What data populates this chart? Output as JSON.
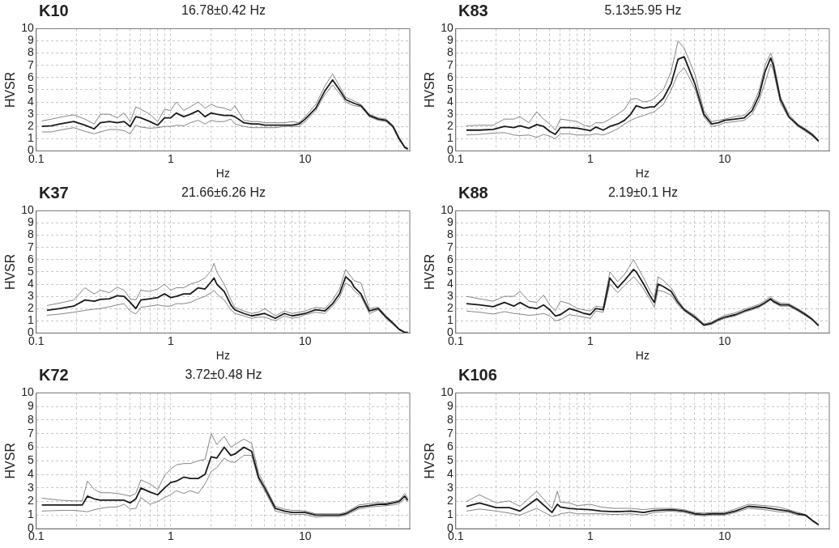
{
  "chart_data": [
    {
      "type": "line",
      "log": "x",
      "title": "K10",
      "subtitle": "16.78±0.42 Hz",
      "xlabel": "Hz",
      "ylabel": "HVSR",
      "xlim": [
        0.1,
        60
      ],
      "ylim": [
        0,
        10
      ],
      "grid": true,
      "xticks": [
        0.1,
        {
          "value": 0.2,
          "label": null
        },
        {
          "value": 0.3,
          "label": null
        },
        {
          "value": 0.4,
          "label": null
        },
        {
          "value": 0.5,
          "label": null
        },
        {
          "value": 0.6,
          "label": null
        },
        {
          "value": 0.7,
          "label": null
        },
        {
          "value": 0.8,
          "label": null
        },
        {
          "value": 0.9,
          "label": null
        },
        1,
        {
          "value": 2,
          "label": null
        },
        {
          "value": 3,
          "label": null
        },
        {
          "value": 4,
          "label": null
        },
        {
          "value": 5,
          "label": null
        },
        {
          "value": 6,
          "label": null
        },
        {
          "value": 7,
          "label": null
        },
        {
          "value": 8,
          "label": null
        },
        {
          "value": 9,
          "label": null
        },
        10,
        {
          "value": 20,
          "label": null
        },
        {
          "value": 30,
          "label": null
        },
        {
          "value": 40,
          "label": null
        },
        {
          "value": 50,
          "label": null
        }
      ],
      "yticks": [
        0,
        1,
        2,
        3,
        4,
        5,
        6,
        7,
        8,
        9,
        10
      ],
      "x": [
        0.11,
        0.13,
        0.15,
        0.19,
        0.23,
        0.27,
        0.3,
        0.35,
        0.4,
        0.45,
        0.5,
        0.55,
        0.6,
        0.7,
        0.8,
        0.9,
        1,
        1.1,
        1.25,
        1.4,
        1.6,
        1.8,
        2,
        2.2,
        2.5,
        2.8,
        3,
        3.5,
        4,
        4.5,
        5,
        6,
        7,
        8,
        9,
        10,
        12,
        14,
        16,
        18,
        20,
        23,
        26,
        30,
        35,
        40,
        45,
        50,
        55,
        58
      ],
      "series": [
        {
          "color": "#1a1a1a",
          "values": [
            2.0,
            2.05,
            2.2,
            2.4,
            2.1,
            1.8,
            2.3,
            2.4,
            2.3,
            2.4,
            2.0,
            2.8,
            2.7,
            2.4,
            2.1,
            2.7,
            2.7,
            3.1,
            2.8,
            3.0,
            3.3,
            2.8,
            3.1,
            3.0,
            2.9,
            2.9,
            2.8,
            2.3,
            2.2,
            2.2,
            2.1,
            2.1,
            2.1,
            2.1,
            2.2,
            2.6,
            3.5,
            4.9,
            5.8,
            5.0,
            4.2,
            3.9,
            3.7,
            2.9,
            2.6,
            2.5,
            2.0,
            1.0,
            0.3,
            0.15
          ]
        },
        {
          "color": "#666666",
          "values": [
            2.45,
            2.6,
            2.75,
            2.95,
            2.6,
            2.2,
            3.0,
            3.0,
            2.7,
            3.1,
            2.4,
            3.6,
            3.4,
            3.0,
            2.4,
            3.4,
            3.3,
            4.0,
            3.3,
            3.6,
            4.0,
            3.5,
            3.8,
            3.6,
            3.5,
            3.3,
            3.7,
            2.5,
            2.4,
            2.4,
            2.3,
            2.3,
            2.3,
            2.4,
            2.3,
            2.8,
            3.8,
            5.3,
            6.3,
            5.3,
            4.4,
            4.1,
            3.8,
            3.0,
            2.7,
            2.6,
            2.1,
            1.1,
            0.35,
            0.2
          ]
        },
        {
          "color": "#666666",
          "values": [
            1.55,
            1.55,
            1.7,
            1.9,
            1.6,
            1.4,
            1.55,
            1.75,
            1.75,
            1.65,
            1.4,
            2.1,
            1.95,
            1.85,
            1.9,
            2.0,
            2.0,
            2.1,
            2.05,
            2.3,
            2.5,
            2.2,
            2.5,
            2.4,
            2.4,
            2.6,
            2.2,
            2.0,
            1.9,
            1.9,
            1.9,
            1.9,
            2.0,
            2.0,
            2.0,
            2.4,
            3.3,
            4.6,
            5.4,
            4.7,
            4.0,
            3.7,
            3.6,
            2.8,
            2.5,
            2.4,
            1.9,
            0.9,
            0.25,
            0.1
          ]
        }
      ]
    },
    {
      "type": "line",
      "log": "x",
      "title": "K83",
      "subtitle": "5.13±5.95 Hz",
      "xlabel": "Hz",
      "ylabel": "HVSR",
      "xlim": [
        0.1,
        60
      ],
      "ylim": [
        0,
        10
      ],
      "grid": true,
      "xticks": [
        0.1,
        {
          "value": 0.2,
          "label": null
        },
        {
          "value": 0.3,
          "label": null
        },
        {
          "value": 0.4,
          "label": null
        },
        {
          "value": 0.5,
          "label": null
        },
        {
          "value": 0.6,
          "label": null
        },
        {
          "value": 0.7,
          "label": null
        },
        {
          "value": 0.8,
          "label": null
        },
        {
          "value": 0.9,
          "label": null
        },
        1,
        {
          "value": 2,
          "label": null
        },
        {
          "value": 3,
          "label": null
        },
        {
          "value": 4,
          "label": null
        },
        {
          "value": 5,
          "label": null
        },
        {
          "value": 6,
          "label": null
        },
        {
          "value": 7,
          "label": null
        },
        {
          "value": 8,
          "label": null
        },
        {
          "value": 9,
          "label": null
        },
        10,
        {
          "value": 20,
          "label": null
        },
        {
          "value": 30,
          "label": null
        },
        {
          "value": 40,
          "label": null
        },
        {
          "value": 50,
          "label": null
        }
      ],
      "yticks": [
        0,
        1,
        2,
        3,
        4,
        5,
        6,
        7,
        8,
        9,
        10
      ],
      "x": [
        0.12,
        0.15,
        0.19,
        0.23,
        0.27,
        0.3,
        0.35,
        0.4,
        0.45,
        0.5,
        0.55,
        0.6,
        0.7,
        0.8,
        0.9,
        1,
        1.1,
        1.25,
        1.4,
        1.6,
        1.8,
        2,
        2.2,
        2.5,
        2.8,
        3,
        3.5,
        4,
        4.5,
        5,
        6,
        7,
        8,
        9,
        10,
        12,
        14,
        16,
        18,
        20,
        22,
        23,
        26,
        30,
        35,
        40,
        45,
        50
      ],
      "series": [
        {
          "color": "#1a1a1a",
          "values": [
            1.7,
            1.7,
            1.75,
            2.0,
            1.9,
            2.05,
            1.85,
            2.15,
            2.0,
            1.6,
            1.35,
            1.9,
            1.9,
            1.85,
            1.75,
            1.65,
            1.95,
            1.7,
            2.0,
            2.2,
            2.5,
            3.0,
            3.7,
            3.5,
            3.6,
            3.6,
            4.3,
            5.5,
            7.5,
            7.7,
            5.5,
            3.0,
            2.2,
            2.3,
            2.5,
            2.6,
            2.7,
            3.3,
            4.5,
            6.5,
            7.6,
            7.0,
            4.2,
            2.8,
            2.1,
            1.7,
            1.3,
            0.8
          ]
        },
        {
          "color": "#666666",
          "values": [
            2.05,
            2.1,
            2.1,
            2.6,
            2.6,
            2.8,
            2.3,
            3.2,
            2.6,
            2.2,
            1.7,
            2.6,
            2.5,
            2.4,
            2.1,
            2.0,
            2.3,
            2.3,
            2.6,
            3.0,
            3.4,
            4.2,
            4.3,
            4.0,
            4.1,
            4.3,
            5.0,
            6.5,
            9.0,
            8.4,
            6.3,
            3.3,
            2.4,
            2.5,
            2.6,
            2.8,
            2.9,
            3.6,
            4.9,
            7.0,
            8.0,
            7.4,
            4.4,
            3.0,
            2.2,
            1.8,
            1.4,
            0.9
          ]
        },
        {
          "color": "#666666",
          "values": [
            1.3,
            1.35,
            1.45,
            1.5,
            1.3,
            1.25,
            1.3,
            1.1,
            1.35,
            1.2,
            1.0,
            1.4,
            1.4,
            1.3,
            1.3,
            1.3,
            1.4,
            1.3,
            1.5,
            1.8,
            2.2,
            2.5,
            2.7,
            2.9,
            3.1,
            3.2,
            3.8,
            5.0,
            6.3,
            6.8,
            5.1,
            2.8,
            2.0,
            2.1,
            2.3,
            2.4,
            2.5,
            3.0,
            4.1,
            5.6,
            7.1,
            6.6,
            3.9,
            2.7,
            2.0,
            1.6,
            1.2,
            0.75
          ]
        }
      ]
    },
    {
      "type": "line",
      "log": "x",
      "title": "K37",
      "subtitle": "21.66±6.26 Hz",
      "xlabel": "Hz",
      "ylabel": "HVSR",
      "xlim": [
        0.1,
        60
      ],
      "ylim": [
        0,
        10
      ],
      "grid": true,
      "xticks": [
        0.1,
        {
          "value": 0.2,
          "label": null
        },
        {
          "value": 0.3,
          "label": null
        },
        {
          "value": 0.4,
          "label": null
        },
        {
          "value": 0.5,
          "label": null
        },
        {
          "value": 0.6,
          "label": null
        },
        {
          "value": 0.7,
          "label": null
        },
        {
          "value": 0.8,
          "label": null
        },
        {
          "value": 0.9,
          "label": null
        },
        1,
        {
          "value": 2,
          "label": null
        },
        {
          "value": 3,
          "label": null
        },
        {
          "value": 4,
          "label": null
        },
        {
          "value": 5,
          "label": null
        },
        {
          "value": 6,
          "label": null
        },
        {
          "value": 7,
          "label": null
        },
        {
          "value": 8,
          "label": null
        },
        {
          "value": 9,
          "label": null
        },
        10,
        {
          "value": 20,
          "label": null
        },
        {
          "value": 30,
          "label": null
        },
        {
          "value": 40,
          "label": null
        },
        {
          "value": 50,
          "label": null
        }
      ],
      "yticks": [
        0,
        1,
        2,
        3,
        4,
        5,
        6,
        7,
        8,
        9,
        10
      ],
      "x": [
        0.12,
        0.15,
        0.19,
        0.23,
        0.27,
        0.3,
        0.35,
        0.4,
        0.45,
        0.5,
        0.55,
        0.6,
        0.7,
        0.8,
        0.9,
        1,
        1.1,
        1.25,
        1.4,
        1.6,
        1.8,
        2,
        2.1,
        2.2,
        2.5,
        2.8,
        3,
        3.5,
        4,
        4.5,
        5,
        6,
        7,
        8,
        9,
        10,
        12,
        14,
        16,
        18,
        20,
        22,
        23,
        26,
        30,
        35,
        40,
        45,
        50,
        55,
        58
      ],
      "series": [
        {
          "color": "#1a1a1a",
          "values": [
            1.85,
            2.0,
            2.2,
            2.7,
            2.6,
            2.75,
            2.8,
            3.05,
            3.0,
            2.5,
            2.0,
            2.7,
            2.8,
            2.9,
            3.2,
            2.9,
            3.0,
            3.2,
            3.2,
            3.7,
            3.6,
            4.2,
            4.5,
            4.0,
            3.4,
            2.3,
            1.9,
            1.6,
            1.4,
            1.5,
            1.6,
            1.2,
            1.6,
            1.4,
            1.5,
            1.6,
            1.9,
            1.8,
            2.4,
            3.2,
            4.6,
            4.2,
            3.8,
            3.2,
            1.8,
            2.0,
            1.3,
            0.8,
            0.3,
            0.05,
            0.05
          ]
        },
        {
          "color": "#666666",
          "values": [
            2.25,
            2.45,
            2.7,
            3.7,
            3.2,
            3.5,
            3.3,
            3.75,
            3.5,
            2.8,
            2.7,
            3.5,
            3.4,
            3.6,
            4.0,
            3.5,
            3.7,
            3.7,
            4.0,
            4.2,
            4.5,
            5.1,
            5.7,
            5.0,
            4.0,
            2.7,
            2.1,
            1.8,
            1.6,
            1.7,
            2.0,
            1.4,
            1.8,
            1.6,
            1.7,
            1.8,
            2.1,
            2.0,
            2.7,
            3.6,
            5.2,
            4.6,
            4.3,
            4.1,
            2.0,
            2.1,
            1.4,
            0.9,
            0.35,
            0.07,
            0.07
          ]
        },
        {
          "color": "#666666",
          "values": [
            1.45,
            1.55,
            1.7,
            1.85,
            1.95,
            2.0,
            2.15,
            2.3,
            2.4,
            1.8,
            1.55,
            2.1,
            2.2,
            2.3,
            2.2,
            2.2,
            2.4,
            2.4,
            2.5,
            2.8,
            3.0,
            3.3,
            3.5,
            3.2,
            2.7,
            1.9,
            1.6,
            1.4,
            1.2,
            1.3,
            1.3,
            1.0,
            1.4,
            1.2,
            1.3,
            1.5,
            1.7,
            1.6,
            2.2,
            2.9,
            4.1,
            3.8,
            3.5,
            3.0,
            1.6,
            1.9,
            1.2,
            0.7,
            0.25,
            0.03,
            0.03
          ]
        }
      ]
    },
    {
      "type": "line",
      "log": "x",
      "title": "K88",
      "subtitle": "2.19±0.1 Hz",
      "xlabel": "Hz",
      "ylabel": "HVSR",
      "xlim": [
        0.1,
        60
      ],
      "ylim": [
        0,
        10
      ],
      "grid": true,
      "xticks": [
        0.1,
        {
          "value": 0.2,
          "label": null
        },
        {
          "value": 0.3,
          "label": null
        },
        {
          "value": 0.4,
          "label": null
        },
        {
          "value": 0.5,
          "label": null
        },
        {
          "value": 0.6,
          "label": null
        },
        {
          "value": 0.7,
          "label": null
        },
        {
          "value": 0.8,
          "label": null
        },
        {
          "value": 0.9,
          "label": null
        },
        1,
        {
          "value": 2,
          "label": null
        },
        {
          "value": 3,
          "label": null
        },
        {
          "value": 4,
          "label": null
        },
        {
          "value": 5,
          "label": null
        },
        {
          "value": 6,
          "label": null
        },
        {
          "value": 7,
          "label": null
        },
        {
          "value": 8,
          "label": null
        },
        {
          "value": 9,
          "label": null
        },
        10,
        {
          "value": 20,
          "label": null
        },
        {
          "value": 30,
          "label": null
        },
        {
          "value": 40,
          "label": null
        },
        {
          "value": 50,
          "label": null
        }
      ],
      "yticks": [
        0,
        1,
        2,
        3,
        4,
        5,
        6,
        7,
        8,
        9,
        10
      ],
      "x": [
        0.12,
        0.15,
        0.19,
        0.23,
        0.27,
        0.3,
        0.35,
        0.4,
        0.45,
        0.5,
        0.55,
        0.6,
        0.7,
        0.8,
        0.9,
        1,
        1.1,
        1.25,
        1.4,
        1.6,
        1.8,
        2.1,
        2.2,
        2.5,
        2.8,
        3,
        3.2,
        3.5,
        4,
        4.5,
        5,
        6,
        7,
        8,
        9,
        10,
        12,
        14,
        16,
        18,
        20,
        22,
        23,
        26,
        30,
        35,
        40,
        45,
        50
      ],
      "series": [
        {
          "color": "#1a1a1a",
          "values": [
            2.4,
            2.3,
            2.15,
            2.5,
            2.2,
            2.5,
            2.1,
            2.0,
            2.3,
            1.9,
            1.4,
            1.5,
            2.0,
            1.8,
            1.6,
            1.5,
            2.0,
            1.9,
            4.5,
            3.7,
            4.3,
            5.2,
            5.0,
            4.0,
            3.0,
            2.5,
            4.0,
            3.8,
            3.4,
            2.5,
            1.9,
            1.3,
            0.65,
            0.8,
            1.1,
            1.3,
            1.5,
            1.8,
            2.0,
            2.2,
            2.5,
            2.8,
            2.6,
            2.3,
            2.3,
            1.9,
            1.5,
            1.1,
            0.6
          ]
        },
        {
          "color": "#666666",
          "values": [
            3.0,
            2.8,
            2.6,
            3.0,
            3.0,
            3.4,
            2.6,
            2.5,
            3.1,
            2.3,
            1.8,
            2.6,
            2.4,
            2.0,
            1.9,
            1.8,
            2.2,
            2.1,
            5.0,
            4.2,
            4.8,
            6.0,
            5.6,
            4.5,
            3.4,
            2.9,
            4.6,
            4.3,
            3.7,
            2.7,
            2.0,
            1.45,
            0.75,
            0.9,
            1.2,
            1.45,
            1.65,
            1.95,
            2.15,
            2.35,
            2.65,
            3.0,
            2.75,
            2.45,
            2.4,
            2.0,
            1.6,
            1.15,
            0.65
          ]
        },
        {
          "color": "#666666",
          "values": [
            1.8,
            1.7,
            1.55,
            1.75,
            1.6,
            1.55,
            1.45,
            1.5,
            1.6,
            1.4,
            1.0,
            1.1,
            1.5,
            1.4,
            1.3,
            1.2,
            1.8,
            1.7,
            4.0,
            3.3,
            3.9,
            4.6,
            4.4,
            3.6,
            2.7,
            2.1,
            3.5,
            3.4,
            3.1,
            2.3,
            1.8,
            1.2,
            0.6,
            0.7,
            1.0,
            1.2,
            1.4,
            1.7,
            1.9,
            2.1,
            2.4,
            2.7,
            2.5,
            2.2,
            2.2,
            1.8,
            1.4,
            1.05,
            0.55
          ]
        }
      ]
    },
    {
      "type": "line",
      "log": "x",
      "title": "K72",
      "subtitle": "3.72±0.48 Hz",
      "ylabel": "HVSR",
      "xlim": [
        0.1,
        60
      ],
      "ylim": [
        0,
        10
      ],
      "grid": true,
      "xticks": [
        0.1,
        {
          "value": 0.2,
          "label": null
        },
        {
          "value": 0.3,
          "label": null
        },
        {
          "value": 0.4,
          "label": null
        },
        {
          "value": 0.5,
          "label": null
        },
        {
          "value": 0.6,
          "label": null
        },
        {
          "value": 0.7,
          "label": null
        },
        {
          "value": 0.8,
          "label": null
        },
        {
          "value": 0.9,
          "label": null
        },
        1,
        {
          "value": 2,
          "label": null
        },
        {
          "value": 3,
          "label": null
        },
        {
          "value": 4,
          "label": null
        },
        {
          "value": 5,
          "label": null
        },
        {
          "value": 6,
          "label": null
        },
        {
          "value": 7,
          "label": null
        },
        {
          "value": 8,
          "label": null
        },
        {
          "value": 9,
          "label": null
        },
        10,
        {
          "value": 20,
          "label": null
        },
        {
          "value": 30,
          "label": null
        },
        {
          "value": 40,
          "label": null
        },
        {
          "value": 50,
          "label": null
        }
      ],
      "yticks": [
        0,
        1,
        2,
        3,
        4,
        5,
        6,
        7,
        8,
        9,
        10
      ],
      "x": [
        0.11,
        0.15,
        0.19,
        0.22,
        0.24,
        0.27,
        0.3,
        0.35,
        0.4,
        0.45,
        0.5,
        0.55,
        0.6,
        0.7,
        0.8,
        0.9,
        1,
        1.1,
        1.25,
        1.4,
        1.6,
        1.8,
        2,
        2.2,
        2.5,
        2.8,
        3,
        3.5,
        4,
        4.5,
        5,
        6,
        7,
        8,
        9,
        10,
        12,
        14,
        16,
        18,
        20,
        25,
        30,
        35,
        40,
        45,
        50,
        55,
        58
      ],
      "series": [
        {
          "color": "#1a1a1a",
          "values": [
            1.75,
            1.75,
            1.75,
            1.75,
            2.4,
            2.2,
            2.1,
            2.1,
            2.1,
            2.1,
            1.9,
            2.2,
            3.0,
            2.7,
            2.5,
            3.0,
            3.4,
            3.5,
            3.8,
            3.7,
            3.7,
            4.0,
            5.3,
            5.2,
            6.0,
            5.4,
            5.5,
            6.0,
            5.7,
            3.8,
            3.0,
            1.5,
            1.3,
            1.2,
            1.2,
            1.2,
            1.0,
            1.0,
            1.0,
            1.0,
            1.1,
            1.6,
            1.7,
            1.8,
            1.8,
            1.9,
            2.0,
            2.4,
            2.1
          ]
        },
        {
          "color": "#666666",
          "values": [
            2.25,
            2.1,
            2.05,
            2.05,
            3.5,
            2.9,
            2.65,
            2.65,
            2.6,
            2.5,
            2.4,
            2.6,
            3.6,
            3.3,
            2.9,
            3.9,
            4.4,
            4.7,
            4.8,
            4.8,
            5.0,
            5.1,
            7.0,
            6.2,
            6.8,
            6.0,
            6.2,
            6.6,
            6.3,
            4.1,
            3.2,
            1.65,
            1.45,
            1.35,
            1.35,
            1.3,
            1.1,
            1.1,
            1.1,
            1.1,
            1.2,
            1.75,
            1.85,
            1.95,
            1.9,
            2.0,
            2.1,
            2.6,
            2.25
          ]
        },
        {
          "color": "#666666",
          "values": [
            1.3,
            1.35,
            1.35,
            1.3,
            1.25,
            1.4,
            1.5,
            1.6,
            1.6,
            1.8,
            1.45,
            1.5,
            2.3,
            1.8,
            2.0,
            2.3,
            2.5,
            2.8,
            2.6,
            2.8,
            2.6,
            3.3,
            4.2,
            4.5,
            5.2,
            4.9,
            4.9,
            5.4,
            5.4,
            3.6,
            2.8,
            1.3,
            1.15,
            1.05,
            1.05,
            1.05,
            0.85,
            0.9,
            0.9,
            0.9,
            1.0,
            1.45,
            1.6,
            1.65,
            1.7,
            1.75,
            1.85,
            2.2,
            2.0
          ]
        }
      ]
    },
    {
      "type": "line",
      "log": "x",
      "title": "K106",
      "ylabel": "HVSR",
      "xlim": [
        0.1,
        60
      ],
      "ylim": [
        0,
        10
      ],
      "grid": true,
      "xticks": [
        0.1,
        {
          "value": 0.2,
          "label": null
        },
        {
          "value": 0.3,
          "label": null
        },
        {
          "value": 0.4,
          "label": null
        },
        {
          "value": 0.5,
          "label": null
        },
        {
          "value": 0.6,
          "label": null
        },
        {
          "value": 0.7,
          "label": null
        },
        {
          "value": 0.8,
          "label": null
        },
        {
          "value": 0.9,
          "label": null
        },
        1,
        {
          "value": 2,
          "label": null
        },
        {
          "value": 3,
          "label": null
        },
        {
          "value": 4,
          "label": null
        },
        {
          "value": 5,
          "label": null
        },
        {
          "value": 6,
          "label": null
        },
        {
          "value": 7,
          "label": null
        },
        {
          "value": 8,
          "label": null
        },
        {
          "value": 9,
          "label": null
        },
        10,
        {
          "value": 20,
          "label": null
        },
        {
          "value": 30,
          "label": null
        },
        {
          "value": 40,
          "label": null
        },
        {
          "value": 50,
          "label": null
        }
      ],
      "yticks": [
        0,
        1,
        2,
        3,
        4,
        5,
        6,
        7,
        8,
        9,
        10
      ],
      "x": [
        0.12,
        0.15,
        0.2,
        0.25,
        0.3,
        0.4,
        0.52,
        0.57,
        0.6,
        0.7,
        0.8,
        1,
        1.2,
        1.5,
        2,
        2.5,
        3,
        4,
        5,
        6,
        7,
        8,
        10,
        12,
        15,
        20,
        25,
        30,
        35,
        40,
        45,
        50
      ],
      "series": [
        {
          "color": "#1a1a1a",
          "values": [
            1.65,
            1.9,
            1.55,
            1.55,
            1.3,
            2.2,
            1.2,
            1.8,
            1.6,
            1.5,
            1.45,
            1.4,
            1.3,
            1.25,
            1.3,
            1.2,
            1.35,
            1.4,
            1.3,
            1.1,
            1.05,
            1.1,
            1.1,
            1.3,
            1.65,
            1.55,
            1.4,
            1.3,
            1.1,
            1.0,
            0.6,
            0.3
          ]
        },
        {
          "color": "#666666",
          "values": [
            2.0,
            2.5,
            1.9,
            2.05,
            1.65,
            2.75,
            1.5,
            2.75,
            1.95,
            1.9,
            1.7,
            1.8,
            1.6,
            1.5,
            1.5,
            1.4,
            1.5,
            1.5,
            1.4,
            1.2,
            1.15,
            1.2,
            1.2,
            1.45,
            1.8,
            1.7,
            1.6,
            1.4,
            1.2,
            1.05,
            0.65,
            0.32
          ]
        },
        {
          "color": "#666666",
          "values": [
            1.3,
            1.45,
            1.3,
            1.15,
            1.0,
            1.5,
            0.9,
            1.0,
            1.1,
            1.2,
            1.1,
            1.1,
            1.1,
            1.05,
            1.1,
            1.0,
            1.2,
            1.3,
            1.2,
            1.0,
            0.95,
            1.0,
            1.0,
            1.2,
            1.5,
            1.4,
            1.25,
            1.2,
            1.0,
            0.95,
            0.55,
            0.28
          ]
        }
      ]
    }
  ]
}
